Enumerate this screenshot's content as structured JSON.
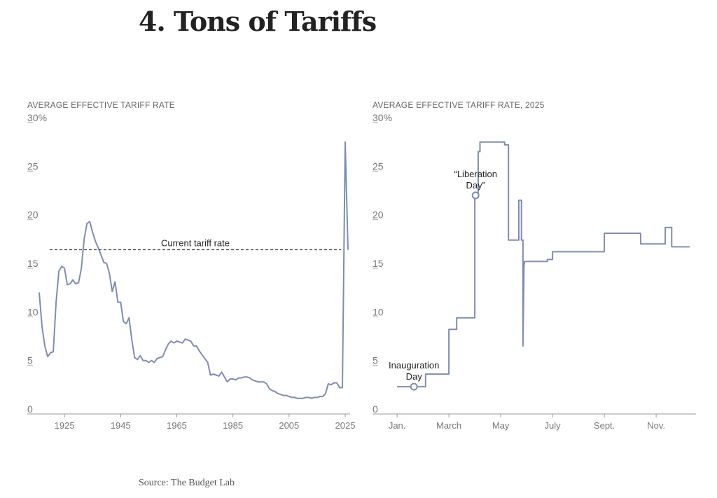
{
  "title": "4. Tons of Tariffs",
  "source": "Source: The Budget Lab",
  "colors": {
    "line": "#7f8db0",
    "axis": "#999999",
    "text": "#222222"
  },
  "chart_data": [
    {
      "type": "line",
      "ylabel": "AVERAGE EFFECTIVE TARIFF RATE",
      "ylim": [
        0,
        30
      ],
      "yticks": [
        "0",
        "5",
        "10",
        "15",
        "20",
        "25",
        "30%"
      ],
      "xlim": [
        1913,
        2026
      ],
      "xticks": [
        "1925",
        "1945",
        "1965",
        "1985",
        "2005",
        "2025"
      ],
      "annotations": [
        {
          "text": "Current tariff rate",
          "value": 16.4
        }
      ],
      "series": [
        {
          "x": [
            1916,
            1917,
            1918,
            1919,
            1920,
            1921,
            1922,
            1923,
            1924,
            1925,
            1926,
            1927,
            1928,
            1929,
            1930,
            1931,
            1932,
            1933,
            1934,
            1935,
            1936,
            1937,
            1938,
            1939,
            1940,
            1941,
            1942,
            1943,
            1944,
            1945,
            1946,
            1947,
            1948,
            1949,
            1950,
            1951,
            1952,
            1953,
            1954,
            1955,
            1956,
            1957,
            1958,
            1959,
            1960,
            1961,
            1962,
            1963,
            1964,
            1965,
            1966,
            1967,
            1968,
            1969,
            1970,
            1971,
            1972,
            1973,
            1974,
            1975,
            1976,
            1977,
            1978,
            1979,
            1980,
            1981,
            1982,
            1983,
            1984,
            1985,
            1986,
            1987,
            1988,
            1989,
            1990,
            1991,
            1992,
            1993,
            1994,
            1995,
            1996,
            1997,
            1998,
            1999,
            2000,
            2001,
            2002,
            2003,
            2004,
            2005,
            2006,
            2007,
            2008,
            2009,
            2010,
            2011,
            2012,
            2013,
            2014,
            2015,
            2016,
            2017,
            2018,
            2019,
            2020,
            2021,
            2022,
            2023,
            2024,
            2025,
            2026
          ],
          "y": [
            12.0,
            8.5,
            6.5,
            5.4,
            5.8,
            5.9,
            11.0,
            14.2,
            14.7,
            14.5,
            12.8,
            12.9,
            13.3,
            12.9,
            13.0,
            14.5,
            17.5,
            19.1,
            19.3,
            18.2,
            17.3,
            16.6,
            15.9,
            15.1,
            15.0,
            14.0,
            12.1,
            13.1,
            11.0,
            11.0,
            9.0,
            8.8,
            9.4,
            7.1,
            5.3,
            5.1,
            5.5,
            5.0,
            5.0,
            4.8,
            5.0,
            4.8,
            5.2,
            5.3,
            5.4,
            6.1,
            6.7,
            7.0,
            6.8,
            7.0,
            6.9,
            6.8,
            7.2,
            7.1,
            7.0,
            6.5,
            6.5,
            6.0,
            5.6,
            5.2,
            4.8,
            3.5,
            3.6,
            3.5,
            3.4,
            3.8,
            3.3,
            2.8,
            3.1,
            3.1,
            3.0,
            3.2,
            3.2,
            3.3,
            3.3,
            3.2,
            3.0,
            2.9,
            2.8,
            2.8,
            2.8,
            2.6,
            2.1,
            1.9,
            1.8,
            1.6,
            1.5,
            1.4,
            1.4,
            1.3,
            1.2,
            1.2,
            1.1,
            1.1,
            1.1,
            1.2,
            1.2,
            1.1,
            1.2,
            1.2,
            1.3,
            1.3,
            1.6,
            2.6,
            2.5,
            2.7,
            2.7,
            2.2,
            2.2,
            27.5,
            16.4
          ]
        }
      ]
    },
    {
      "type": "line",
      "ylabel": "AVERAGE EFFECTIVE TARIFF RATE, 2025",
      "ylim": [
        0,
        30
      ],
      "yticks": [
        "0",
        "5",
        "10",
        "15",
        "20",
        "25",
        "30%"
      ],
      "xlim": [
        -0.03,
        11.97
      ],
      "xticks": [
        "Jan.",
        "March",
        "May",
        "July",
        "Sept.",
        "Nov."
      ],
      "xtick_values": [
        0,
        2,
        4,
        6,
        8,
        10
      ],
      "annotations": [
        {
          "text_lines": [
            "Inauguration",
            "Day"
          ],
          "x": 0.65,
          "y": 2.3
        },
        {
          "text_lines": [
            "“Liberation",
            "Day”"
          ],
          "x": 3.03,
          "y": 22.0
        }
      ],
      "series": [
        {
          "x": [
            0.0,
            0.7,
            1.1,
            1.1,
            2.0,
            2.0,
            2.3,
            2.3,
            2.9,
            2.9,
            3.0,
            3.0,
            3.03,
            3.03,
            3.13,
            3.13,
            3.2,
            3.2,
            3.3,
            3.3,
            4.15,
            4.15,
            4.3,
            4.3,
            4.6,
            4.65,
            4.7,
            4.7,
            4.8,
            4.8,
            4.86,
            4.86,
            4.9,
            4.92,
            5.15,
            5.15,
            5.8,
            5.8,
            6.0,
            6.0,
            7.2,
            7.2,
            8.0,
            8.0,
            9.4,
            9.4,
            9.9,
            9.9,
            10.35,
            10.35,
            10.6,
            10.6,
            11.3
          ],
          "y": [
            2.3,
            2.3,
            2.3,
            3.6,
            3.6,
            8.2,
            8.2,
            9.4,
            9.4,
            9.4,
            9.4,
            22.0,
            22.0,
            22.0,
            22.0,
            26.5,
            26.5,
            27.5,
            27.5,
            27.5,
            27.5,
            27.2,
            27.2,
            17.4,
            17.4,
            17.4,
            17.4,
            21.5,
            21.5,
            17.4,
            17.4,
            6.5,
            14.7,
            15.2,
            15.2,
            15.2,
            15.2,
            15.4,
            15.4,
            16.2,
            16.2,
            16.2,
            16.2,
            18.1,
            18.1,
            17.0,
            17.0,
            17.0,
            17.0,
            18.7,
            18.7,
            16.7,
            16.7
          ]
        }
      ]
    }
  ]
}
